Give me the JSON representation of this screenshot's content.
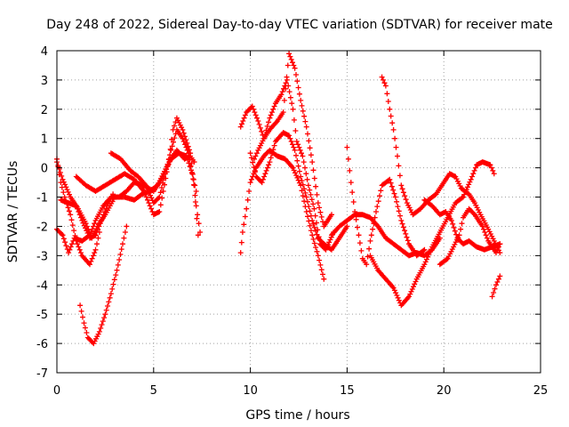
{
  "chart_data": {
    "type": "scatter",
    "title": "Day 248 of 2022, Sidereal Day-to-day VTEC variation (SDTVAR) for receiver mate",
    "xlabel": "GPS time / hours",
    "ylabel": "SDTVAR / TECUs",
    "xlim": [
      0,
      25
    ],
    "ylim": [
      -7,
      4
    ],
    "xticks": [
      "0",
      "5",
      "10",
      "15",
      "20",
      "25"
    ],
    "yticks": [
      "-7",
      "-6",
      "-5",
      "-4",
      "-3",
      "-2",
      "-1",
      "0",
      "1",
      "2",
      "3",
      "4"
    ],
    "grid": true,
    "marker": "+",
    "color": "#ff0000",
    "series": [
      {
        "name": "s1",
        "points": [
          [
            0,
            -2.1
          ],
          [
            0.3,
            -2.3
          ],
          [
            0.6,
            -2.9
          ],
          [
            0.9,
            -2.4
          ],
          [
            1.3,
            -2.5
          ],
          [
            1.7,
            -2.3
          ],
          [
            2.0,
            -1.8
          ],
          [
            2.4,
            -1.3
          ],
          [
            2.8,
            -1.0
          ],
          [
            3.2,
            -1.0
          ],
          [
            3.6,
            -0.8
          ],
          [
            4.0,
            -0.5
          ],
          [
            4.5,
            -0.6
          ],
          [
            5.0,
            -0.8
          ],
          [
            5.4,
            -0.4
          ],
          [
            5.9,
            0.3
          ],
          [
            6.3,
            0.5
          ],
          [
            6.7,
            0.4
          ],
          [
            7.0,
            -0.2
          ],
          [
            7.2,
            -0.8
          ]
        ]
      },
      {
        "name": "s2",
        "points": [
          [
            0,
            0.2
          ],
          [
            0.3,
            -0.4
          ],
          [
            0.7,
            -1.0
          ],
          [
            1.1,
            -1.4
          ],
          [
            1.5,
            -1.9
          ],
          [
            1.8,
            -2.4
          ],
          [
            2.1,
            -2.0
          ],
          [
            2.5,
            -1.6
          ],
          [
            3.0,
            -1.0
          ],
          [
            3.5,
            -1.0
          ],
          [
            4.0,
            -1.1
          ],
          [
            4.4,
            -0.9
          ],
          [
            4.8,
            -0.8
          ],
          [
            5.2,
            -0.6
          ],
          [
            5.5,
            -0.2
          ],
          [
            5.8,
            0.2
          ],
          [
            6.2,
            0.6
          ],
          [
            6.6,
            0.3
          ],
          [
            6.9,
            0.4
          ],
          [
            7.1,
            0.2
          ]
        ]
      },
      {
        "name": "s3",
        "points": [
          [
            0,
            0.3
          ],
          [
            0.2,
            -0.5
          ],
          [
            0.4,
            -1.0
          ],
          [
            0.7,
            -1.6
          ],
          [
            1.0,
            -2.5
          ],
          [
            1.3,
            -3.0
          ],
          [
            1.7,
            -3.3
          ],
          [
            2.0,
            -2.8
          ],
          [
            2.2,
            -2.2
          ]
        ]
      },
      {
        "name": "s4",
        "points": [
          [
            1.2,
            -4.7
          ],
          [
            1.4,
            -5.3
          ],
          [
            1.6,
            -5.8
          ],
          [
            1.9,
            -6.0
          ],
          [
            2.2,
            -5.6
          ],
          [
            2.5,
            -5.0
          ],
          [
            2.8,
            -4.3
          ],
          [
            3.1,
            -3.5
          ],
          [
            3.4,
            -2.6
          ],
          [
            3.6,
            -2.0
          ]
        ]
      },
      {
        "name": "s5",
        "points": [
          [
            0.2,
            -1.1
          ],
          [
            0.6,
            -1.2
          ],
          [
            1.0,
            -1.3
          ],
          [
            1.3,
            -1.8
          ],
          [
            1.7,
            -2.4
          ],
          [
            2.0,
            -2.3
          ],
          [
            2.3,
            -1.8
          ],
          [
            2.6,
            -1.3
          ],
          [
            2.9,
            -0.9
          ]
        ]
      },
      {
        "name": "s6",
        "points": [
          [
            2.8,
            0.5
          ],
          [
            3.3,
            0.3
          ],
          [
            3.8,
            -0.1
          ],
          [
            4.2,
            -0.3
          ],
          [
            4.6,
            -0.6
          ],
          [
            5.0,
            -1.2
          ],
          [
            5.3,
            -1.0
          ],
          [
            5.6,
            -0.2
          ],
          [
            5.9,
            0.6
          ],
          [
            6.2,
            1.3
          ],
          [
            6.5,
            1.0
          ],
          [
            6.8,
            0.5
          ],
          [
            7.1,
            -0.6
          ],
          [
            7.3,
            -2.3
          ]
        ]
      },
      {
        "name": "s7",
        "points": [
          [
            1.0,
            -0.3
          ],
          [
            1.5,
            -0.6
          ],
          [
            2.0,
            -0.8
          ],
          [
            2.5,
            -0.6
          ],
          [
            3.0,
            -0.4
          ],
          [
            3.5,
            -0.2
          ],
          [
            4.0,
            -0.4
          ],
          [
            4.5,
            -0.8
          ],
          [
            5.0,
            -1.6
          ],
          [
            5.3,
            -1.5
          ],
          [
            5.5,
            -0.8
          ],
          [
            5.8,
            0.3
          ],
          [
            6.0,
            1.3
          ],
          [
            6.2,
            1.7
          ],
          [
            6.5,
            1.3
          ],
          [
            6.9,
            0.5
          ],
          [
            7.2,
            -1.3
          ],
          [
            7.4,
            -2.2
          ]
        ]
      },
      {
        "name": "s8",
        "points": [
          [
            9.5,
            -2.9
          ],
          [
            9.6,
            -2.2
          ],
          [
            9.8,
            -1.4
          ],
          [
            10.0,
            -0.5
          ],
          [
            10.3,
            0.0
          ],
          [
            10.7,
            0.4
          ],
          [
            11.0,
            0.6
          ],
          [
            11.4,
            0.4
          ],
          [
            11.8,
            0.3
          ],
          [
            12.2,
            0.0
          ],
          [
            12.6,
            -0.6
          ],
          [
            12.9,
            -1.5
          ],
          [
            13.2,
            -2.3
          ],
          [
            13.5,
            -3.0
          ],
          [
            13.8,
            -3.8
          ]
        ]
      },
      {
        "name": "s9",
        "points": [
          [
            9.5,
            1.4
          ],
          [
            9.8,
            1.9
          ],
          [
            10.1,
            2.1
          ],
          [
            10.4,
            1.6
          ],
          [
            10.7,
            1.0
          ],
          [
            11.0,
            1.3
          ],
          [
            11.4,
            1.6
          ],
          [
            11.7,
            1.9
          ],
          [
            12.0,
            3.9
          ],
          [
            12.3,
            3.4
          ],
          [
            12.6,
            2.3
          ],
          [
            12.9,
            1.4
          ],
          [
            13.2,
            0.2
          ],
          [
            13.5,
            -1.2
          ],
          [
            13.8,
            -2.0
          ],
          [
            14.2,
            -1.6
          ]
        ]
      },
      {
        "name": "s10",
        "points": [
          [
            10.2,
            0.3
          ],
          [
            10.4,
            0.6
          ],
          [
            10.7,
            1.0
          ],
          [
            11.0,
            1.7
          ],
          [
            11.3,
            2.2
          ],
          [
            11.6,
            2.5
          ],
          [
            11.9,
            3.0
          ],
          [
            12.2,
            2.0
          ],
          [
            12.4,
            0.9
          ],
          [
            12.7,
            0.4
          ],
          [
            13.0,
            -0.6
          ],
          [
            13.3,
            -1.4
          ],
          [
            13.6,
            -2.6
          ],
          [
            13.9,
            -2.8
          ],
          [
            14.3,
            -2.2
          ]
        ]
      },
      {
        "name": "s11",
        "points": [
          [
            10.0,
            0.5
          ],
          [
            10.3,
            -0.3
          ],
          [
            10.6,
            -0.5
          ],
          [
            11.0,
            0.2
          ],
          [
            11.3,
            0.9
          ],
          [
            11.7,
            1.2
          ],
          [
            12.0,
            1.1
          ],
          [
            12.3,
            0.6
          ],
          [
            12.6,
            -0.3
          ],
          [
            12.9,
            -1.0
          ],
          [
            13.2,
            -1.8
          ],
          [
            13.5,
            -2.4
          ],
          [
            13.8,
            -2.6
          ],
          [
            14.2,
            -2.8
          ],
          [
            14.6,
            -2.4
          ],
          [
            15.0,
            -2.0
          ]
        ]
      },
      {
        "name": "s12",
        "points": [
          [
            14.2,
            -2.3
          ],
          [
            14.6,
            -2.0
          ],
          [
            15.0,
            -1.8
          ],
          [
            15.4,
            -1.6
          ],
          [
            15.8,
            -1.6
          ],
          [
            16.2,
            -1.7
          ],
          [
            16.6,
            -2.0
          ],
          [
            17.0,
            -2.4
          ],
          [
            17.4,
            -2.6
          ],
          [
            17.8,
            -2.8
          ],
          [
            18.2,
            -3.0
          ],
          [
            18.6,
            -2.9
          ],
          [
            19.0,
            -3.0
          ],
          [
            19.4,
            -2.8
          ],
          [
            19.8,
            -2.4
          ]
        ]
      },
      {
        "name": "s13",
        "points": [
          [
            15.0,
            0.7
          ],
          [
            15.2,
            -0.5
          ],
          [
            15.4,
            -1.5
          ],
          [
            15.6,
            -2.3
          ],
          [
            15.8,
            -3.1
          ],
          [
            16.0,
            -3.3
          ],
          [
            16.2,
            -2.5
          ],
          [
            16.5,
            -1.5
          ],
          [
            16.8,
            -0.6
          ],
          [
            17.2,
            -0.4
          ],
          [
            17.5,
            -1.0
          ],
          [
            17.8,
            -1.8
          ],
          [
            18.2,
            -2.6
          ],
          [
            18.6,
            -3.0
          ],
          [
            19.0,
            -2.8
          ]
        ]
      },
      {
        "name": "s14",
        "points": [
          [
            16.8,
            3.1
          ],
          [
            17.0,
            2.8
          ],
          [
            17.2,
            2.0
          ],
          [
            17.4,
            1.3
          ],
          [
            17.6,
            0.4
          ],
          [
            17.8,
            -0.6
          ],
          [
            18.1,
            -1.2
          ],
          [
            18.4,
            -1.6
          ],
          [
            18.8,
            -1.4
          ],
          [
            19.2,
            -1.1
          ],
          [
            19.6,
            -0.9
          ],
          [
            19.9,
            -0.6
          ],
          [
            20.3,
            -0.2
          ],
          [
            20.6,
            -0.3
          ],
          [
            20.9,
            -0.7
          ],
          [
            21.3,
            -0.9
          ],
          [
            21.6,
            -1.2
          ],
          [
            21.9,
            -1.6
          ],
          [
            22.3,
            -2.1
          ],
          [
            22.6,
            -2.5
          ],
          [
            22.9,
            -2.9
          ]
        ]
      },
      {
        "name": "s15",
        "points": [
          [
            16.2,
            -3.0
          ],
          [
            16.6,
            -3.5
          ],
          [
            17.0,
            -3.8
          ],
          [
            17.4,
            -4.1
          ],
          [
            17.8,
            -4.7
          ],
          [
            18.2,
            -4.4
          ],
          [
            18.6,
            -3.8
          ],
          [
            19.0,
            -3.3
          ],
          [
            19.4,
            -2.7
          ],
          [
            19.8,
            -2.2
          ],
          [
            20.2,
            -1.7
          ],
          [
            20.6,
            -1.2
          ],
          [
            21.0,
            -1.0
          ],
          [
            21.4,
            -0.4
          ],
          [
            21.7,
            0.1
          ],
          [
            22.0,
            0.2
          ],
          [
            22.4,
            0.1
          ],
          [
            22.6,
            -0.2
          ]
        ]
      },
      {
        "name": "s16",
        "points": [
          [
            19.0,
            -1.1
          ],
          [
            19.4,
            -1.3
          ],
          [
            19.8,
            -1.6
          ],
          [
            20.1,
            -1.5
          ],
          [
            20.4,
            -1.8
          ],
          [
            20.7,
            -2.4
          ],
          [
            21.0,
            -2.6
          ],
          [
            21.3,
            -2.5
          ],
          [
            21.7,
            -2.7
          ],
          [
            22.1,
            -2.8
          ],
          [
            22.5,
            -2.7
          ],
          [
            22.9,
            -2.6
          ]
        ]
      },
      {
        "name": "s17",
        "points": [
          [
            22.5,
            -4.4
          ],
          [
            22.7,
            -4.0
          ],
          [
            22.9,
            -3.7
          ]
        ]
      },
      {
        "name": "s18",
        "points": [
          [
            19.8,
            -3.3
          ],
          [
            20.2,
            -3.1
          ],
          [
            20.5,
            -2.7
          ],
          [
            20.8,
            -2.3
          ],
          [
            21.0,
            -1.7
          ],
          [
            21.3,
            -1.4
          ],
          [
            21.6,
            -1.6
          ],
          [
            22.0,
            -2.0
          ],
          [
            22.3,
            -2.5
          ],
          [
            22.7,
            -2.9
          ],
          [
            22.9,
            -2.6
          ]
        ]
      }
    ]
  }
}
